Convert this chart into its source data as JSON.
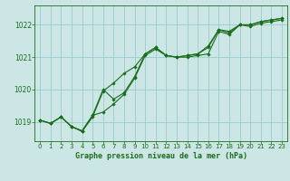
{
  "background_color": "#cce5e5",
  "grid_color": "#99cccc",
  "line_color": "#1a6e1a",
  "marker_color": "#1a6e1a",
  "xlabel": "Graphe pression niveau de la mer (hPa)",
  "xlim": [
    -0.5,
    23.5
  ],
  "ylim": [
    1018.4,
    1022.6
  ],
  "yticks": [
    1019,
    1020,
    1021,
    1022
  ],
  "xticks": [
    0,
    1,
    2,
    3,
    4,
    5,
    6,
    7,
    8,
    9,
    10,
    11,
    12,
    13,
    14,
    15,
    16,
    17,
    18,
    19,
    20,
    21,
    22,
    23
  ],
  "series": [
    {
      "x": [
        0,
        1,
        2,
        3,
        4,
        5,
        6,
        7,
        8,
        9,
        10,
        11,
        12,
        13,
        14,
        15,
        16,
        17,
        18,
        19,
        20,
        21,
        22,
        23
      ],
      "y": [
        1019.05,
        1018.95,
        1019.15,
        1018.85,
        1018.7,
        1019.15,
        1019.95,
        1020.2,
        1020.5,
        1020.7,
        1021.1,
        1021.3,
        1021.05,
        1021.0,
        1021.05,
        1021.1,
        1021.3,
        1021.85,
        1021.75,
        1022.0,
        1022.0,
        1022.1,
        1022.15,
        1022.2
      ]
    },
    {
      "x": [
        0,
        1,
        2,
        3,
        4,
        5,
        6,
        7,
        8,
        9,
        10,
        11,
        12,
        13,
        14,
        15,
        16,
        17,
        18,
        19,
        20,
        21,
        22,
        23
      ],
      "y": [
        1019.05,
        1018.95,
        1019.15,
        1018.85,
        1018.72,
        1019.2,
        1019.3,
        1019.55,
        1019.85,
        1020.35,
        1021.05,
        1021.25,
        1021.05,
        1021.0,
        1021.0,
        1021.05,
        1021.1,
        1021.8,
        1021.7,
        1022.0,
        1021.95,
        1022.05,
        1022.1,
        1022.15
      ]
    },
    {
      "x": [
        0,
        1,
        2,
        3,
        4,
        5,
        6,
        7,
        8,
        9,
        10,
        11,
        12,
        13,
        14,
        15,
        16,
        17,
        18,
        19,
        20,
        21,
        22,
        23
      ],
      "y": [
        1019.05,
        1018.95,
        1019.15,
        1018.85,
        1018.72,
        1019.2,
        1020.0,
        1019.7,
        1019.9,
        1020.4,
        1021.1,
        1021.3,
        1021.05,
        1021.0,
        1021.05,
        1021.1,
        1021.35,
        1021.85,
        1021.8,
        1022.0,
        1022.0,
        1022.1,
        1022.15,
        1022.2
      ]
    }
  ]
}
